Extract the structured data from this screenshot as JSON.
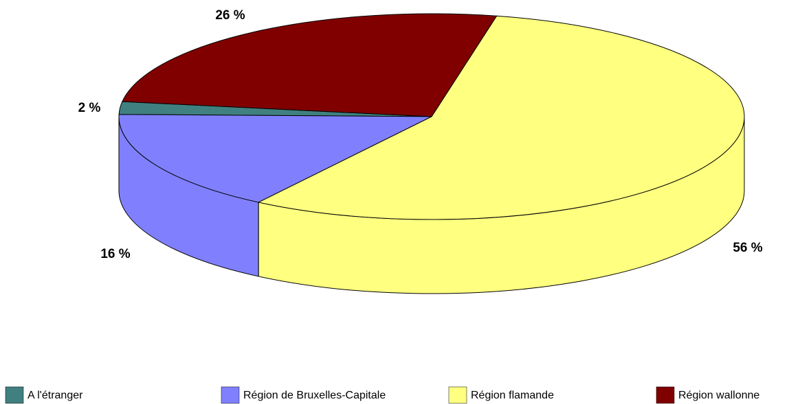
{
  "chart_data": {
    "type": "pie",
    "categories": [
      "A l'étranger",
      "Région de Bruxelles-Capitale",
      "Région flamande",
      "Région wallonne"
    ],
    "values": [
      2,
      16,
      56,
      26
    ],
    "value_labels": [
      "2 %",
      "16 %",
      "56 %",
      "26 %"
    ],
    "colors": [
      "#408080",
      "#8080ff",
      "#ffff80",
      "#800000"
    ],
    "legend": "bottom"
  }
}
